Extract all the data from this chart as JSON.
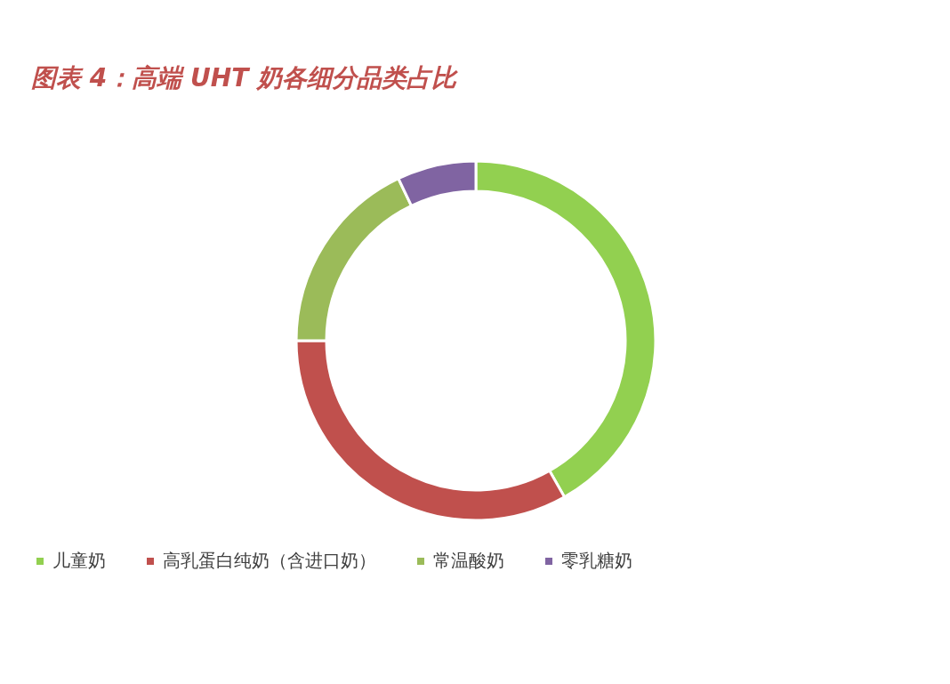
{
  "chart_data": {
    "type": "donut",
    "title": "图表 4：高端 UHT 奶各细分品类占比",
    "categories": [
      "儿童奶",
      "高乳蛋白纯奶（含进口奶）",
      "常温酸奶",
      "零乳糖奶"
    ],
    "values": [
      41.8,
      33.2,
      17.9,
      7.1
    ],
    "colors": [
      "#92d050",
      "#c0504d",
      "#9bbb59",
      "#8064a2"
    ],
    "legend": "bottom"
  }
}
